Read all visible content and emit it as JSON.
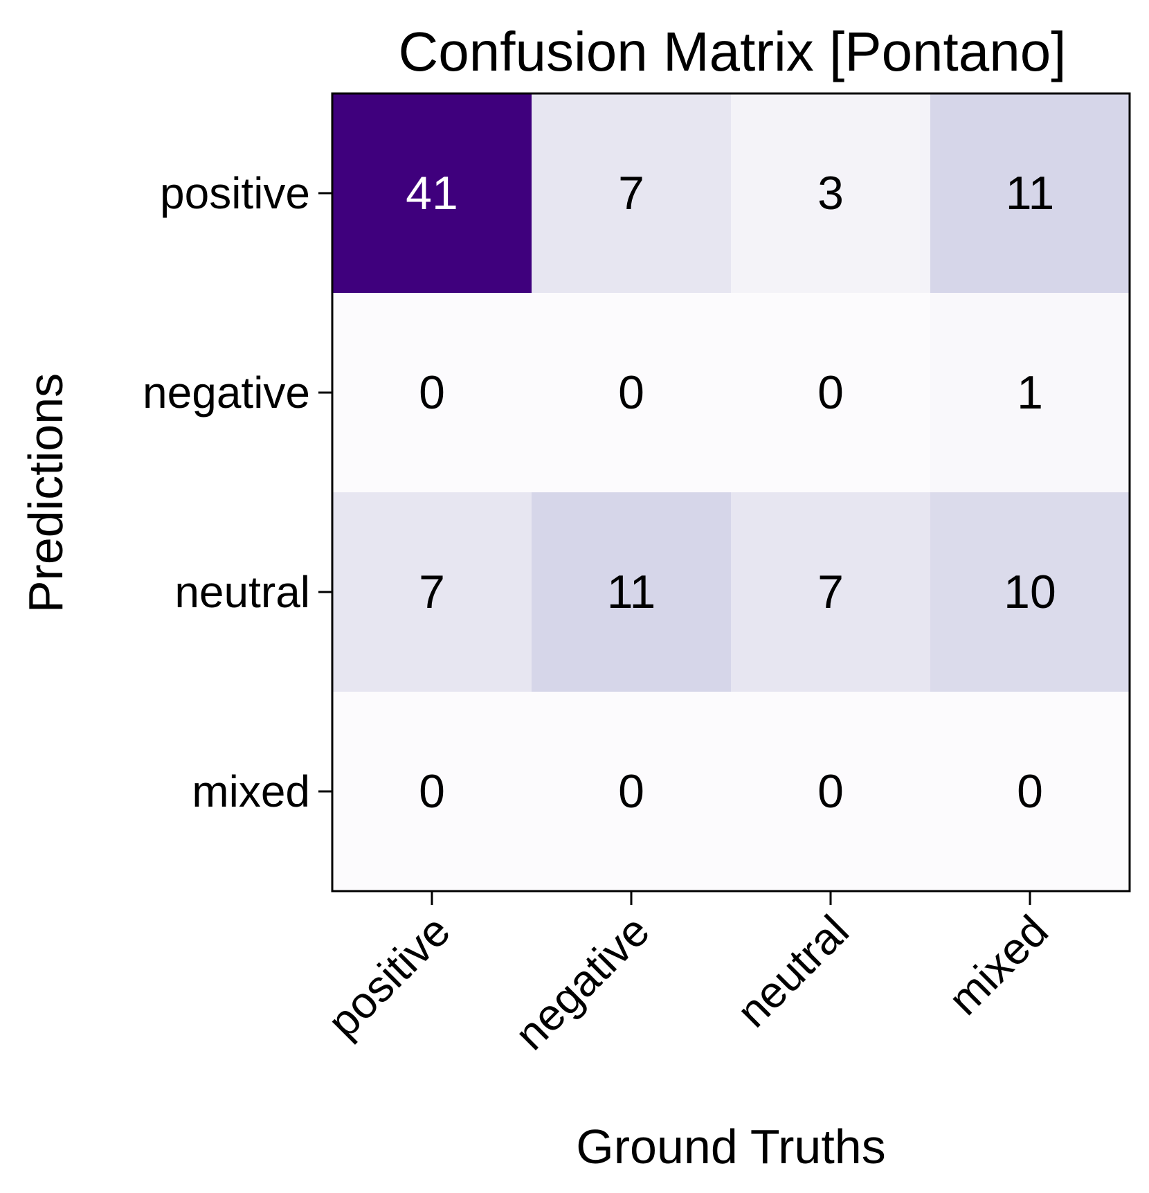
{
  "chart_data": {
    "type": "heatmap",
    "title": "Confusion Matrix [Pontano]",
    "xlabel": "Ground Truths",
    "ylabel": "Predictions",
    "x_categories": [
      "positive",
      "negative",
      "neutral",
      "mixed"
    ],
    "y_categories": [
      "positive",
      "negative",
      "neutral",
      "mixed"
    ],
    "values": [
      [
        41,
        7,
        3,
        11
      ],
      [
        0,
        0,
        0,
        1
      ],
      [
        7,
        11,
        7,
        10
      ],
      [
        0,
        0,
        0,
        0
      ]
    ],
    "colormap": "Purples",
    "color_range": [
      0,
      41
    ],
    "colors": {
      "low": "#fcfbfd",
      "high": "#3f007d",
      "text_dark": "#000000",
      "text_light": "#ffffff",
      "frame": "#000000"
    },
    "grid": false,
    "legend": "none"
  }
}
